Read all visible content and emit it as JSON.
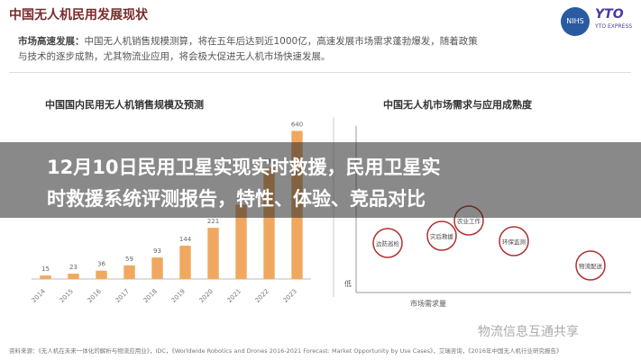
{
  "header": {
    "title": "中国无人机民用发展现状",
    "logo_left": "NIHS",
    "logo_right": "YTO",
    "logo_right_sub": "YTO EXPRESS"
  },
  "intro": {
    "label": "市场高速发展：",
    "line1": "中国无人机销售规模测算，将在五年后达到近1000亿，高速发展市场需求蓬勃爆发，随着政策",
    "line2": "与技术的逐步成熟，尤其物流业应用，将会极大促进无人机市场快速发展。"
  },
  "left_panel": {
    "title": "中国国内民用无人机销售规模及预测"
  },
  "right_panel": {
    "title": "中国无人机市场需求与应用成熟度",
    "x_label": "市场需求量",
    "y_low": "低",
    "nodes": [
      {
        "label": "边防巡检"
      },
      {
        "label": "灾后救援"
      },
      {
        "label": "农业工作"
      },
      {
        "label": "环保监测"
      },
      {
        "label": "物流配送"
      }
    ]
  },
  "chart_data": {
    "type": "bar",
    "categories": [
      "2014",
      "2015",
      "2016",
      "2017",
      "2018",
      "2019",
      "2020",
      "2021",
      "2022",
      "2023"
    ],
    "values": [
      15,
      23,
      36,
      59,
      93,
      144,
      221,
      321,
      480,
      640
    ],
    "color": "#f0a860",
    "ylim": [
      0,
      700
    ]
  },
  "headline": {
    "line1": "12月10日民用卫星实现实时救援，民用卫星实",
    "line2": "时救援系统评测报告，特性、体验、竞品对比"
  },
  "watermark": "物流信息互通共享",
  "source": "资料来源：《无人机在未来一体化的解析与物流应用业》，IDC，《Worldwide Robotics and Drones 2016-2021 Forecast: Market Opportunity by Use Cases》，艾瑞咨询，《2016年中国无人机行业研究报告》"
}
